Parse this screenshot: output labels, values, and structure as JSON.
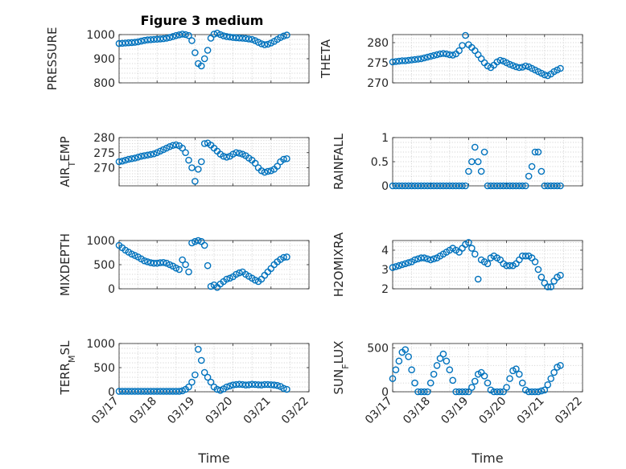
{
  "figure_title": "Figure 3 medium",
  "colors": {
    "marker": "#0072BD",
    "grid": "#c8c8c8",
    "axis": "#262626"
  },
  "chart_data": [
    {
      "type": "scatter",
      "ylabel": "PRESSURE",
      "ylim": [
        800,
        1000
      ],
      "yticks": [
        "800",
        "900",
        "1000"
      ],
      "ytick_values": [
        800,
        900,
        1000
      ],
      "xlim": [
        "03/17",
        "03/22"
      ],
      "grid": true,
      "x": [
        "03/17 00:00",
        "03/17 02:00",
        "03/17 04:00",
        "03/17 06:00",
        "03/17 08:00",
        "03/17 10:00",
        "03/17 12:00",
        "03/17 14:00",
        "03/17 16:00",
        "03/17 18:00",
        "03/17 20:00",
        "03/17 22:00",
        "03/18 00:00",
        "03/18 02:00",
        "03/18 04:00",
        "03/18 06:00",
        "03/18 08:00",
        "03/18 10:00",
        "03/18 12:00",
        "03/18 14:00",
        "03/18 16:00",
        "03/18 18:00",
        "03/18 20:00",
        "03/18 22:00",
        "03/19 00:00",
        "03/19 02:00",
        "03/19 04:00",
        "03/19 06:00",
        "03/19 08:00",
        "03/19 10:00",
        "03/19 12:00",
        "03/19 14:00",
        "03/19 16:00",
        "03/19 18:00",
        "03/19 20:00",
        "03/19 22:00",
        "03/20 00:00",
        "03/20 02:00",
        "03/20 04:00",
        "03/20 06:00",
        "03/20 08:00",
        "03/20 10:00",
        "03/20 12:00",
        "03/20 14:00",
        "03/20 16:00",
        "03/20 18:00",
        "03/20 20:00",
        "03/20 22:00",
        "03/21 00:00",
        "03/21 02:00",
        "03/21 04:00",
        "03/21 06:00",
        "03/21 08:00",
        "03/21 10:00"
      ],
      "y": [
        963,
        964,
        965,
        966,
        967,
        968,
        970,
        973,
        976,
        978,
        979,
        980,
        981,
        982,
        983,
        985,
        988,
        992,
        996,
        999,
        1002,
        1000,
        996,
        975,
        925,
        880,
        870,
        900,
        935,
        985,
        1002,
        1006,
        1000,
        995,
        992,
        990,
        988,
        987,
        986,
        985,
        984,
        982,
        980,
        975,
        968,
        962,
        958,
        960,
        965,
        972,
        980,
        988,
        994,
        998
      ]
    },
    {
      "type": "scatter",
      "ylabel": "THETA",
      "ylim": [
        270,
        282
      ],
      "yticks": [
        "270",
        "275",
        "280"
      ],
      "ytick_values": [
        270,
        275,
        280
      ],
      "xlim": [
        "03/17",
        "03/22"
      ],
      "grid": true,
      "x": [
        "03/17 00:00",
        "03/17 02:00",
        "03/17 04:00",
        "03/17 06:00",
        "03/17 08:00",
        "03/17 10:00",
        "03/17 12:00",
        "03/17 14:00",
        "03/17 16:00",
        "03/17 18:00",
        "03/17 20:00",
        "03/17 22:00",
        "03/18 00:00",
        "03/18 02:00",
        "03/18 04:00",
        "03/18 06:00",
        "03/18 08:00",
        "03/18 10:00",
        "03/18 12:00",
        "03/18 14:00",
        "03/18 16:00",
        "03/18 18:00",
        "03/18 20:00",
        "03/18 22:00",
        "03/19 00:00",
        "03/19 02:00",
        "03/19 04:00",
        "03/19 06:00",
        "03/19 08:00",
        "03/19 10:00",
        "03/19 12:00",
        "03/19 14:00",
        "03/19 16:00",
        "03/19 18:00",
        "03/19 20:00",
        "03/19 22:00",
        "03/20 00:00",
        "03/20 02:00",
        "03/20 04:00",
        "03/20 06:00",
        "03/20 08:00",
        "03/20 10:00",
        "03/20 12:00",
        "03/20 14:00",
        "03/20 16:00",
        "03/20 18:00",
        "03/20 20:00",
        "03/20 22:00",
        "03/21 00:00",
        "03/21 02:00",
        "03/21 04:00",
        "03/21 06:00",
        "03/21 08:00",
        "03/21 10:00"
      ],
      "y": [
        275.2,
        275.3,
        275.4,
        275.5,
        275.5,
        275.6,
        275.7,
        275.8,
        275.9,
        276.0,
        276.2,
        276.4,
        276.6,
        276.8,
        277.0,
        277.2,
        277.3,
        277.2,
        277.0,
        276.9,
        277.2,
        278.0,
        279.3,
        281.8,
        279.5,
        278.8,
        278.0,
        277.0,
        276.0,
        275.0,
        274.2,
        273.8,
        274.4,
        275.2,
        275.6,
        275.4,
        275.0,
        274.6,
        274.3,
        274.0,
        273.8,
        273.9,
        274.2,
        274.0,
        273.6,
        273.2,
        272.8,
        272.4,
        272.0,
        271.8,
        272.2,
        272.8,
        273.2,
        273.6
      ]
    },
    {
      "type": "scatter",
      "ylabel": "AIR_TEMP",
      "ylim": [
        264,
        280
      ],
      "yticks": [
        "270",
        "275",
        "280"
      ],
      "ytick_values": [
        270,
        275,
        280
      ],
      "xlim": [
        "03/17",
        "03/22"
      ],
      "grid": true,
      "x": [
        "03/17 00:00",
        "03/17 02:00",
        "03/17 04:00",
        "03/17 06:00",
        "03/17 08:00",
        "03/17 10:00",
        "03/17 12:00",
        "03/17 14:00",
        "03/17 16:00",
        "03/17 18:00",
        "03/17 20:00",
        "03/17 22:00",
        "03/18 00:00",
        "03/18 02:00",
        "03/18 04:00",
        "03/18 06:00",
        "03/18 08:00",
        "03/18 10:00",
        "03/18 12:00",
        "03/18 14:00",
        "03/18 16:00",
        "03/18 18:00",
        "03/18 20:00",
        "03/18 22:00",
        "03/19 00:00",
        "03/19 02:00",
        "03/19 04:00",
        "03/19 06:00",
        "03/19 08:00",
        "03/19 10:00",
        "03/19 12:00",
        "03/19 14:00",
        "03/19 16:00",
        "03/19 18:00",
        "03/19 20:00",
        "03/19 22:00",
        "03/20 00:00",
        "03/20 02:00",
        "03/20 04:00",
        "03/20 06:00",
        "03/20 08:00",
        "03/20 10:00",
        "03/20 12:00",
        "03/20 14:00",
        "03/20 16:00",
        "03/20 18:00",
        "03/20 20:00",
        "03/20 22:00",
        "03/21 00:00",
        "03/21 02:00",
        "03/21 04:00",
        "03/21 06:00",
        "03/21 08:00",
        "03/21 10:00"
      ],
      "y": [
        272.0,
        272.2,
        272.5,
        272.8,
        273.0,
        273.2,
        273.5,
        273.8,
        274.0,
        274.2,
        274.4,
        274.6,
        275.0,
        275.5,
        276.0,
        276.5,
        277.0,
        277.4,
        277.6,
        277.3,
        276.5,
        275.0,
        272.5,
        270.0,
        265.5,
        269.5,
        272.0,
        278.0,
        278.2,
        277.5,
        276.5,
        275.5,
        274.5,
        273.8,
        273.5,
        273.8,
        274.5,
        275.0,
        274.8,
        274.5,
        274.0,
        273.2,
        272.5,
        271.5,
        270.0,
        269.0,
        268.5,
        268.8,
        269.0,
        269.5,
        270.5,
        272.0,
        272.8,
        273.0
      ]
    },
    {
      "type": "scatter",
      "ylabel": "RAINFALL",
      "ylim": [
        0,
        1
      ],
      "yticks": [
        "0",
        "0.5",
        "1"
      ],
      "ytick_values": [
        0,
        0.5,
        1
      ],
      "xlim": [
        "03/17",
        "03/22"
      ],
      "grid": true,
      "x": [
        "03/17 00:00",
        "03/17 02:00",
        "03/17 04:00",
        "03/17 06:00",
        "03/17 08:00",
        "03/17 10:00",
        "03/17 12:00",
        "03/17 14:00",
        "03/17 16:00",
        "03/17 18:00",
        "03/17 20:00",
        "03/17 22:00",
        "03/18 00:00",
        "03/18 02:00",
        "03/18 04:00",
        "03/18 06:00",
        "03/18 08:00",
        "03/18 10:00",
        "03/18 12:00",
        "03/18 14:00",
        "03/18 16:00",
        "03/18 18:00",
        "03/18 20:00",
        "03/18 22:00",
        "03/19 00:00",
        "03/19 02:00",
        "03/19 04:00",
        "03/19 06:00",
        "03/19 08:00",
        "03/19 10:00",
        "03/19 12:00",
        "03/19 14:00",
        "03/19 16:00",
        "03/19 18:00",
        "03/19 20:00",
        "03/19 22:00",
        "03/20 00:00",
        "03/20 02:00",
        "03/20 04:00",
        "03/20 06:00",
        "03/20 08:00",
        "03/20 10:00",
        "03/20 12:00",
        "03/20 14:00",
        "03/20 16:00",
        "03/20 18:00",
        "03/20 20:00",
        "03/20 22:00",
        "03/21 00:00",
        "03/21 02:00",
        "03/21 04:00",
        "03/21 06:00",
        "03/21 08:00",
        "03/21 10:00"
      ],
      "y": [
        0,
        0,
        0,
        0,
        0,
        0,
        0,
        0,
        0,
        0,
        0,
        0,
        0,
        0,
        0,
        0,
        0,
        0,
        0,
        0,
        0,
        0,
        0,
        0,
        0.3,
        0.5,
        0.8,
        0.5,
        0.3,
        0.7,
        0,
        0,
        0,
        0,
        0,
        0,
        0,
        0,
        0,
        0,
        0,
        0,
        0,
        0.2,
        0.4,
        0.7,
        0.7,
        0.3,
        0,
        0,
        0,
        0,
        0,
        0
      ]
    },
    {
      "type": "scatter",
      "ylabel": "MIXDEPTH",
      "ylim": [
        0,
        1000
      ],
      "yticks": [
        "0",
        "500",
        "1000"
      ],
      "ytick_values": [
        0,
        500,
        1000
      ],
      "xlim": [
        "03/17",
        "03/22"
      ],
      "grid": true,
      "x": [
        "03/17 00:00",
        "03/17 02:00",
        "03/17 04:00",
        "03/17 06:00",
        "03/17 08:00",
        "03/17 10:00",
        "03/17 12:00",
        "03/17 14:00",
        "03/17 16:00",
        "03/17 18:00",
        "03/17 20:00",
        "03/17 22:00",
        "03/18 00:00",
        "03/18 02:00",
        "03/18 04:00",
        "03/18 06:00",
        "03/18 08:00",
        "03/18 10:00",
        "03/18 12:00",
        "03/18 14:00",
        "03/18 16:00",
        "03/18 18:00",
        "03/18 20:00",
        "03/18 22:00",
        "03/19 00:00",
        "03/19 02:00",
        "03/19 04:00",
        "03/19 06:00",
        "03/19 08:00",
        "03/19 10:00",
        "03/19 12:00",
        "03/19 14:00",
        "03/19 16:00",
        "03/19 18:00",
        "03/19 20:00",
        "03/19 22:00",
        "03/20 00:00",
        "03/20 02:00",
        "03/20 04:00",
        "03/20 06:00",
        "03/20 08:00",
        "03/20 10:00",
        "03/20 12:00",
        "03/20 14:00",
        "03/20 16:00",
        "03/20 18:00",
        "03/20 20:00",
        "03/20 22:00",
        "03/21 00:00",
        "03/21 02:00",
        "03/21 04:00",
        "03/21 06:00",
        "03/21 08:00",
        "03/21 10:00"
      ],
      "y": [
        900,
        850,
        800,
        760,
        720,
        690,
        660,
        620,
        580,
        560,
        540,
        530,
        530,
        540,
        545,
        530,
        500,
        470,
        430,
        400,
        600,
        500,
        350,
        950,
        980,
        1000,
        980,
        900,
        480,
        50,
        80,
        30,
        100,
        150,
        200,
        220,
        250,
        300,
        330,
        350,
        300,
        260,
        220,
        180,
        150,
        200,
        280,
        350,
        420,
        500,
        560,
        610,
        650,
        660
      ]
    },
    {
      "type": "scatter",
      "ylabel": "H2OMIXRA",
      "ylim": [
        2,
        4.5
      ],
      "yticks": [
        "2",
        "3",
        "4"
      ],
      "ytick_values": [
        2,
        3,
        4
      ],
      "xlim": [
        "03/17",
        "03/22"
      ],
      "grid": true,
      "x": [
        "03/17 00:00",
        "03/17 02:00",
        "03/17 04:00",
        "03/17 06:00",
        "03/17 08:00",
        "03/17 10:00",
        "03/17 12:00",
        "03/17 14:00",
        "03/17 16:00",
        "03/17 18:00",
        "03/17 20:00",
        "03/17 22:00",
        "03/18 00:00",
        "03/18 02:00",
        "03/18 04:00",
        "03/18 06:00",
        "03/18 08:00",
        "03/18 10:00",
        "03/18 12:00",
        "03/18 14:00",
        "03/18 16:00",
        "03/18 18:00",
        "03/18 20:00",
        "03/18 22:00",
        "03/19 00:00",
        "03/19 02:00",
        "03/19 04:00",
        "03/19 06:00",
        "03/19 08:00",
        "03/19 10:00",
        "03/19 12:00",
        "03/19 14:00",
        "03/19 16:00",
        "03/19 18:00",
        "03/19 20:00",
        "03/19 22:00",
        "03/20 00:00",
        "03/20 02:00",
        "03/20 04:00",
        "03/20 06:00",
        "03/20 08:00",
        "03/20 10:00",
        "03/20 12:00",
        "03/20 14:00",
        "03/20 16:00",
        "03/20 18:00",
        "03/20 20:00",
        "03/20 22:00",
        "03/21 00:00",
        "03/21 02:00",
        "03/21 04:00",
        "03/21 06:00",
        "03/21 08:00",
        "03/21 10:00"
      ],
      "y": [
        3.1,
        3.15,
        3.2,
        3.25,
        3.3,
        3.35,
        3.4,
        3.5,
        3.55,
        3.6,
        3.6,
        3.55,
        3.5,
        3.55,
        3.6,
        3.7,
        3.8,
        3.9,
        4.0,
        4.1,
        4.0,
        3.9,
        4.1,
        4.3,
        4.4,
        4.1,
        3.8,
        2.5,
        3.5,
        3.4,
        3.3,
        3.6,
        3.7,
        3.6,
        3.5,
        3.3,
        3.2,
        3.2,
        3.2,
        3.3,
        3.5,
        3.7,
        3.7,
        3.7,
        3.6,
        3.4,
        3.0,
        2.6,
        2.3,
        2.1,
        2.1,
        2.4,
        2.6,
        2.7
      ]
    },
    {
      "type": "scatter",
      "ylabel": "TERR_MSL",
      "ylim": [
        0,
        1000
      ],
      "yticks": [
        "0",
        "500",
        "1000"
      ],
      "ytick_values": [
        0,
        500,
        1000
      ],
      "xlabel": "Time",
      "xticks": [
        "03/17",
        "03/18",
        "03/19",
        "03/20",
        "03/21",
        "03/22"
      ],
      "xlim": [
        "03/17",
        "03/22"
      ],
      "grid": true,
      "x": [
        "03/17 00:00",
        "03/17 02:00",
        "03/17 04:00",
        "03/17 06:00",
        "03/17 08:00",
        "03/17 10:00",
        "03/17 12:00",
        "03/17 14:00",
        "03/17 16:00",
        "03/17 18:00",
        "03/17 20:00",
        "03/17 22:00",
        "03/18 00:00",
        "03/18 02:00",
        "03/18 04:00",
        "03/18 06:00",
        "03/18 08:00",
        "03/18 10:00",
        "03/18 12:00",
        "03/18 14:00",
        "03/18 16:00",
        "03/18 18:00",
        "03/18 20:00",
        "03/18 22:00",
        "03/19 00:00",
        "03/19 02:00",
        "03/19 04:00",
        "03/19 06:00",
        "03/19 08:00",
        "03/19 10:00",
        "03/19 12:00",
        "03/19 14:00",
        "03/19 16:00",
        "03/19 18:00",
        "03/19 20:00",
        "03/19 22:00",
        "03/20 00:00",
        "03/20 02:00",
        "03/20 04:00",
        "03/20 06:00",
        "03/20 08:00",
        "03/20 10:00",
        "03/20 12:00",
        "03/20 14:00",
        "03/20 16:00",
        "03/20 18:00",
        "03/20 20:00",
        "03/20 22:00",
        "03/21 00:00",
        "03/21 02:00",
        "03/21 04:00",
        "03/21 06:00",
        "03/21 08:00",
        "03/21 10:00"
      ],
      "y": [
        10,
        10,
        10,
        10,
        10,
        10,
        10,
        10,
        10,
        10,
        10,
        10,
        10,
        10,
        10,
        10,
        10,
        10,
        10,
        10,
        20,
        50,
        100,
        200,
        350,
        880,
        650,
        400,
        300,
        200,
        100,
        50,
        30,
        60,
        100,
        120,
        140,
        150,
        155,
        150,
        140,
        145,
        155,
        150,
        145,
        140,
        150,
        150,
        145,
        140,
        130,
        110,
        70,
        50
      ]
    },
    {
      "type": "scatter",
      "ylabel": "SUN_FLUX",
      "ylim": [
        0,
        550
      ],
      "yticks": [
        "0",
        "500"
      ],
      "ytick_values": [
        0,
        500
      ],
      "xlabel": "Time",
      "xticks": [
        "03/17",
        "03/18",
        "03/19",
        "03/20",
        "03/21",
        "03/22"
      ],
      "xlim": [
        "03/17",
        "03/22"
      ],
      "grid": true,
      "x": [
        "03/17 00:00",
        "03/17 02:00",
        "03/17 04:00",
        "03/17 06:00",
        "03/17 08:00",
        "03/17 10:00",
        "03/17 12:00",
        "03/17 14:00",
        "03/17 16:00",
        "03/17 18:00",
        "03/17 20:00",
        "03/17 22:00",
        "03/18 00:00",
        "03/18 02:00",
        "03/18 04:00",
        "03/18 06:00",
        "03/18 08:00",
        "03/18 10:00",
        "03/18 12:00",
        "03/18 14:00",
        "03/18 16:00",
        "03/18 18:00",
        "03/18 20:00",
        "03/18 22:00",
        "03/19 00:00",
        "03/19 02:00",
        "03/19 04:00",
        "03/19 06:00",
        "03/19 08:00",
        "03/19 10:00",
        "03/19 12:00",
        "03/19 14:00",
        "03/19 16:00",
        "03/19 18:00",
        "03/19 20:00",
        "03/19 22:00",
        "03/20 00:00",
        "03/20 02:00",
        "03/20 04:00",
        "03/20 06:00",
        "03/20 08:00",
        "03/20 10:00",
        "03/20 12:00",
        "03/20 14:00",
        "03/20 16:00",
        "03/20 18:00",
        "03/20 20:00",
        "03/20 22:00",
        "03/21 00:00",
        "03/21 02:00",
        "03/21 04:00",
        "03/21 06:00",
        "03/21 08:00",
        "03/21 10:00"
      ],
      "y": [
        150,
        250,
        350,
        450,
        480,
        400,
        250,
        100,
        0,
        0,
        0,
        0,
        100,
        200,
        300,
        380,
        430,
        350,
        250,
        130,
        0,
        0,
        0,
        0,
        0,
        50,
        120,
        200,
        220,
        180,
        100,
        20,
        0,
        0,
        0,
        0,
        50,
        150,
        240,
        260,
        200,
        100,
        20,
        0,
        0,
        0,
        0,
        10,
        20,
        80,
        150,
        220,
        280,
        300
      ]
    }
  ]
}
